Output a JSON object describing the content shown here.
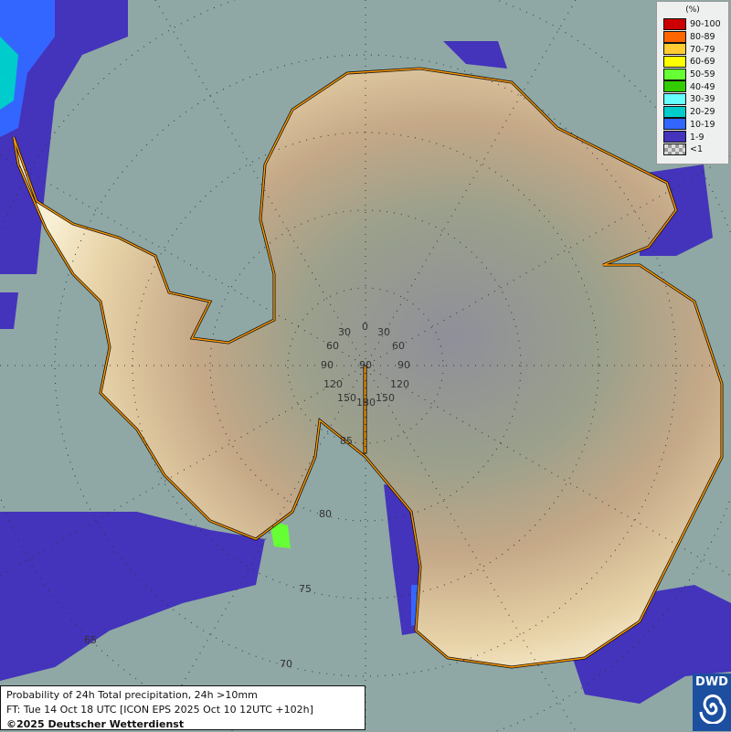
{
  "title": "Probability of 24h Total precipitation, 24h >10mm",
  "forecast_time": "FT: Tue 14 Oct 18 UTC [ICON EPS 2025 Oct 10 12UTC +102h]",
  "copyright": "©2025 Deutscher Wetterdienst",
  "logo_text": "DWD",
  "legend": {
    "unit": "(%)",
    "items": [
      {
        "label": "90-100",
        "color": "#cc0000"
      },
      {
        "label": "80-89",
        "color": "#ff6600"
      },
      {
        "label": "70-79",
        "color": "#ffcc33"
      },
      {
        "label": "60-69",
        "color": "#ffff00"
      },
      {
        "label": "50-59",
        "color": "#66ff33"
      },
      {
        "label": "40-49",
        "color": "#33cc00"
      },
      {
        "label": "30-39",
        "color": "#66ffff"
      },
      {
        "label": "20-29",
        "color": "#00cccc"
      },
      {
        "label": "10-19",
        "color": "#3366ff"
      },
      {
        "label": "1-9",
        "color": "#4433bb"
      },
      {
        "label": "<1",
        "color": "checker"
      }
    ]
  },
  "grid": {
    "longitude_labels": [
      "0",
      "30",
      "30",
      "60",
      "60",
      "90",
      "90",
      "90",
      "120",
      "120",
      "150",
      "150",
      "180"
    ],
    "latitude_labels": [
      "85",
      "80",
      "75",
      "70",
      "65"
    ]
  },
  "colors": {
    "sea": "#8fa8a5",
    "coast": "#ff9900",
    "precip_low": "#4433bb"
  }
}
